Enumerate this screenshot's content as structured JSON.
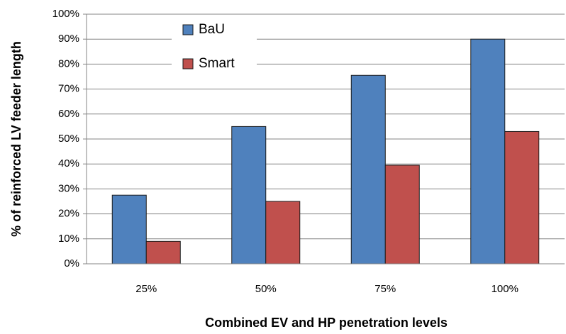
{
  "chart_data": {
    "type": "bar",
    "x_label": "Combined EV and HP penetration levels",
    "y_label": "% of reinforced LV feeder length",
    "categories": [
      "25%",
      "50%",
      "75%",
      "100%"
    ],
    "series": [
      {
        "name": "BaU",
        "color": "#4f81bd",
        "values": [
          27.5,
          55,
          75.5,
          90
        ]
      },
      {
        "name": "Smart",
        "color": "#c0504d",
        "values": [
          9,
          25,
          39.5,
          53
        ]
      }
    ],
    "ylim": [
      0,
      100
    ],
    "yticks": [
      {
        "value": 0,
        "label": "0%"
      },
      {
        "value": 10,
        "label": "10%"
      },
      {
        "value": 20,
        "label": "20%"
      },
      {
        "value": 30,
        "label": "30%"
      },
      {
        "value": 40,
        "label": "40%"
      },
      {
        "value": 50,
        "label": "50%"
      },
      {
        "value": 60,
        "label": "60%"
      },
      {
        "value": 70,
        "label": "70%"
      },
      {
        "value": 80,
        "label": "80%"
      },
      {
        "value": 90,
        "label": "90%"
      },
      {
        "value": 100,
        "label": "100%"
      }
    ],
    "grid": true,
    "legend": "upper left"
  }
}
